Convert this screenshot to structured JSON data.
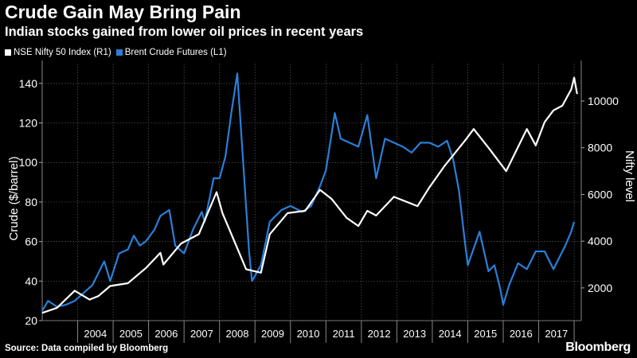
{
  "title": "Crude Gain May Bring Pain",
  "subtitle": "Indian stocks gained from lower oil prices in recent years",
  "legend": {
    "nifty": "NSE Nifty 50 Index (R1)",
    "brent": "Brent Crude Futures (L1)"
  },
  "source": "Source: Data compiled by Bloomberg",
  "brand": "Bloomberg",
  "colors": {
    "background": "#000000",
    "nifty": "#ffffff",
    "brent": "#2a7fd8",
    "grid": "#5a5a5a"
  },
  "chart_data": {
    "type": "line",
    "grid": true,
    "legend_position": "top-left",
    "x_ticks": [
      "2004",
      "2005",
      "2006",
      "2007",
      "2008",
      "2009",
      "2010",
      "2011",
      "2012",
      "2013",
      "2014",
      "2015",
      "2016",
      "2017"
    ],
    "left_axis": {
      "label": "Crude ($/barrel)",
      "ticks": [
        20,
        40,
        60,
        80,
        100,
        120,
        140
      ],
      "ylim": [
        20,
        150
      ]
    },
    "right_axis": {
      "label": "Nifty level",
      "ticks": [
        2000,
        4000,
        6000,
        8000,
        10000
      ],
      "ylim": [
        600,
        11600
      ]
    },
    "series": [
      {
        "name": "Brent Crude Futures (L1)",
        "axis": "left",
        "x": [
          "2003-01",
          "2003-03",
          "2003-06",
          "2003-09",
          "2003-12",
          "2004-03",
          "2004-06",
          "2004-08",
          "2004-10",
          "2004-12",
          "2005-03",
          "2005-06",
          "2005-08",
          "2005-10",
          "2005-12",
          "2006-03",
          "2006-05",
          "2006-08",
          "2006-10",
          "2007-01",
          "2007-04",
          "2007-07",
          "2007-08",
          "2007-11",
          "2008-01",
          "2008-03",
          "2008-05",
          "2008-07",
          "2008-09",
          "2008-11",
          "2008-12",
          "2009-03",
          "2009-06",
          "2009-08",
          "2009-10",
          "2010-01",
          "2010-05",
          "2010-08",
          "2010-11",
          "2011-01",
          "2011-04",
          "2011-06",
          "2011-09",
          "2011-12",
          "2012-03",
          "2012-06",
          "2012-09",
          "2012-12",
          "2013-03",
          "2013-06",
          "2013-09",
          "2013-12",
          "2014-03",
          "2014-06",
          "2014-08",
          "2014-10",
          "2014-12",
          "2015-01",
          "2015-05",
          "2015-08",
          "2015-10",
          "2015-12",
          "2016-01",
          "2016-03",
          "2016-06",
          "2016-09",
          "2016-12",
          "2017-03",
          "2017-06",
          "2017-08",
          "2017-10",
          "2017-12",
          "2018-01"
        ],
        "y": [
          25,
          30,
          27,
          28,
          30,
          34,
          38,
          44,
          50,
          40,
          54,
          56,
          63,
          58,
          60,
          66,
          73,
          76,
          58,
          54,
          66,
          75,
          70,
          92,
          92,
          103,
          125,
          145,
          100,
          55,
          40,
          48,
          70,
          73,
          76,
          78,
          75,
          78,
          88,
          96,
          125,
          112,
          110,
          108,
          124,
          92,
          112,
          110,
          108,
          105,
          110,
          110,
          108,
          111,
          102,
          86,
          60,
          48,
          65,
          45,
          48,
          36,
          28,
          38,
          49,
          46,
          55,
          55,
          46,
          52,
          58,
          65,
          70
        ]
      },
      {
        "name": "NSE Nifty 50 Index (R1)",
        "axis": "right",
        "x": [
          "2003-01",
          "2003-06",
          "2003-12",
          "2004-05",
          "2004-08",
          "2004-12",
          "2005-06",
          "2005-12",
          "2006-05",
          "2006-06",
          "2006-12",
          "2007-06",
          "2007-12",
          "2008-02",
          "2008-06",
          "2008-10",
          "2009-03",
          "2009-06",
          "2009-12",
          "2010-06",
          "2010-11",
          "2011-03",
          "2011-08",
          "2011-12",
          "2012-03",
          "2012-06",
          "2012-12",
          "2013-08",
          "2013-12",
          "2014-05",
          "2014-12",
          "2015-03",
          "2015-08",
          "2016-02",
          "2016-09",
          "2016-12",
          "2017-03",
          "2017-06",
          "2017-09",
          "2017-12",
          "2018-01",
          "2018-02"
        ],
        "y": [
          930,
          1150,
          1880,
          1500,
          1650,
          2080,
          2200,
          2840,
          3500,
          3000,
          3900,
          4300,
          6100,
          5200,
          4000,
          2800,
          2650,
          4300,
          5200,
          5300,
          6200,
          5800,
          5000,
          4650,
          5300,
          5100,
          5900,
          5500,
          6300,
          7200,
          8300,
          8800,
          8000,
          7000,
          8800,
          8100,
          9100,
          9600,
          9800,
          10500,
          11000,
          10300
        ]
      }
    ]
  }
}
